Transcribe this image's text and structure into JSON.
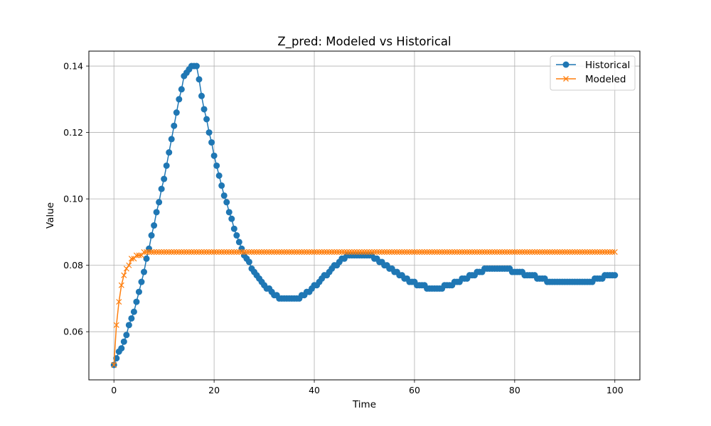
{
  "chart_data": {
    "type": "line",
    "title": "Z_pred: Modeled vs Historical",
    "xlabel": "Time",
    "ylabel": "Value",
    "xlim": [
      -5,
      105
    ],
    "ylim": [
      0.0455,
      0.1445
    ],
    "xticks": [
      0,
      20,
      40,
      60,
      80,
      100
    ],
    "yticks": [
      0.06,
      0.08,
      0.1,
      0.12,
      0.14
    ],
    "ytick_labels": [
      "0.06",
      "0.08",
      "0.10",
      "0.12",
      "0.14"
    ],
    "grid": true,
    "legend_position": "top-right",
    "x_step": 0.5,
    "series": [
      {
        "name": "Historical",
        "color": "#1f77b4",
        "marker": "circle",
        "keypoints": [
          [
            0,
            0.05
          ],
          [
            2,
            0.057
          ],
          [
            4,
            0.066
          ],
          [
            6,
            0.078
          ],
          [
            8,
            0.092
          ],
          [
            10,
            0.106
          ],
          [
            12,
            0.122
          ],
          [
            14,
            0.137
          ],
          [
            15.5,
            0.14
          ],
          [
            16.5,
            0.14
          ],
          [
            18,
            0.127
          ],
          [
            20,
            0.113
          ],
          [
            22,
            0.101
          ],
          [
            24,
            0.091
          ],
          [
            26,
            0.083
          ],
          [
            28,
            0.078
          ],
          [
            30,
            0.074
          ],
          [
            32,
            0.071
          ],
          [
            33,
            0.07
          ],
          [
            37,
            0.07
          ],
          [
            39,
            0.072
          ],
          [
            41,
            0.075
          ],
          [
            43,
            0.078
          ],
          [
            45,
            0.081
          ],
          [
            47,
            0.083
          ],
          [
            51,
            0.083
          ],
          [
            53,
            0.081
          ],
          [
            55,
            0.079
          ],
          [
            57,
            0.077
          ],
          [
            59,
            0.075
          ],
          [
            61,
            0.074
          ],
          [
            63,
            0.073
          ],
          [
            65,
            0.073
          ],
          [
            67,
            0.074
          ],
          [
            70,
            0.076
          ],
          [
            73,
            0.078
          ],
          [
            75,
            0.079
          ],
          [
            78,
            0.079
          ],
          [
            80,
            0.078
          ],
          [
            83,
            0.077
          ],
          [
            85,
            0.076
          ],
          [
            87,
            0.075
          ],
          [
            95,
            0.075
          ],
          [
            97,
            0.076
          ],
          [
            99,
            0.077
          ],
          [
            100,
            0.077
          ]
        ]
      },
      {
        "name": "Modeled",
        "color": "#ff7f0e",
        "marker": "x",
        "keypoints": [
          [
            0,
            0.05
          ],
          [
            0.5,
            0.0615
          ],
          [
            1,
            0.0685
          ],
          [
            1.5,
            0.0735
          ],
          [
            2,
            0.0765
          ],
          [
            2.5,
            0.0788
          ],
          [
            3,
            0.0802
          ],
          [
            3.5,
            0.0815
          ],
          [
            4,
            0.0823
          ],
          [
            4.5,
            0.0828
          ],
          [
            5,
            0.0832
          ],
          [
            6,
            0.0836
          ],
          [
            7,
            0.0838
          ],
          [
            8,
            0.0839
          ],
          [
            10,
            0.084
          ],
          [
            100,
            0.084
          ]
        ]
      }
    ]
  }
}
